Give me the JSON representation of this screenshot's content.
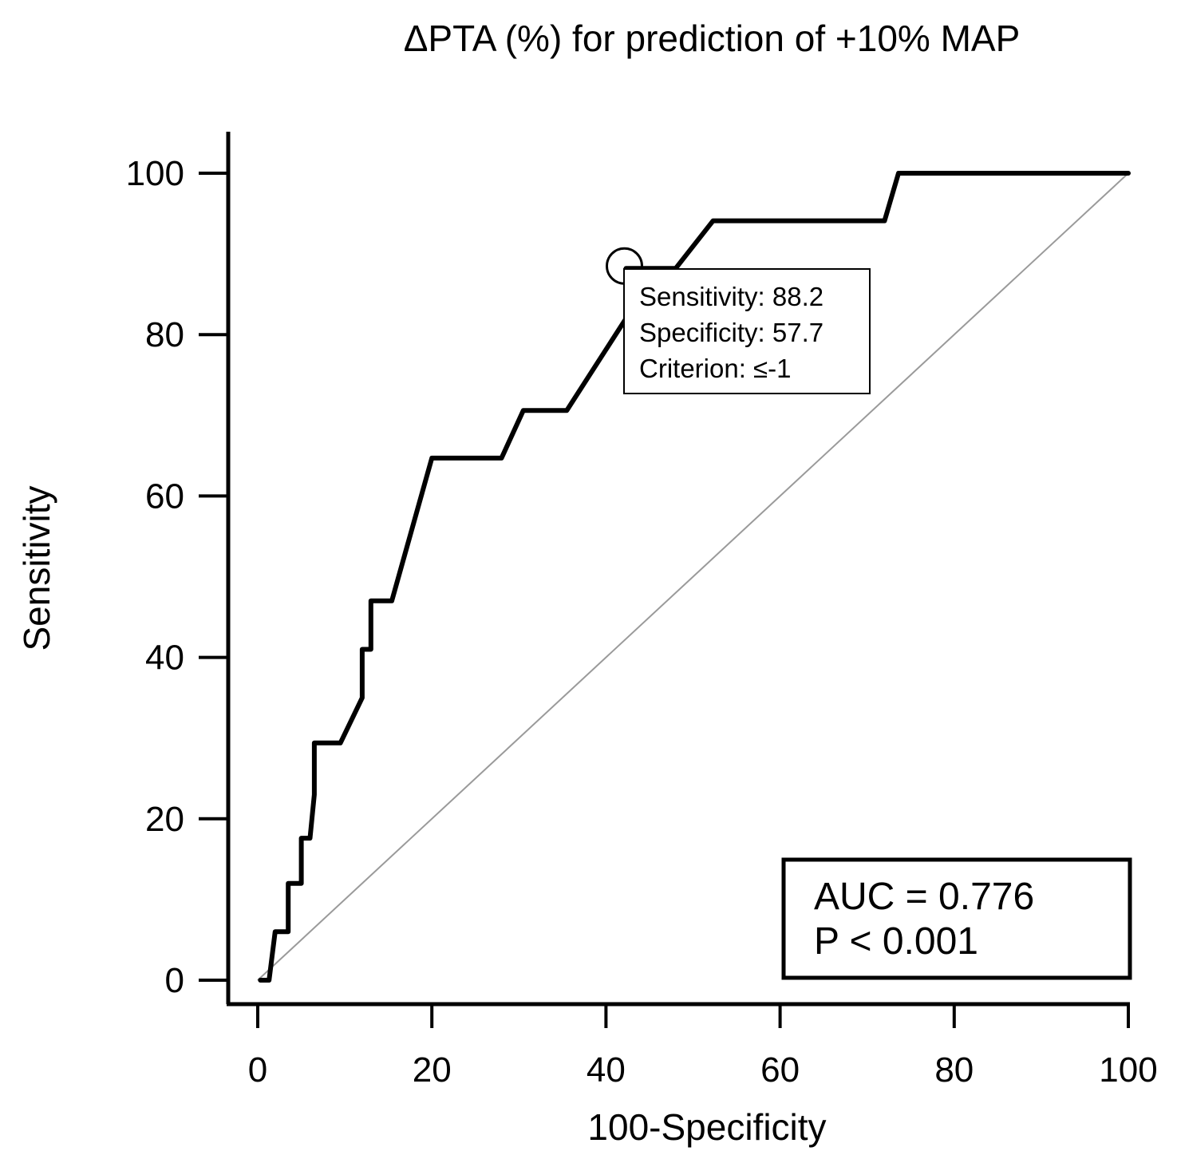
{
  "chart_data": {
    "type": "line",
    "title": "ΔPTA (%) for prediction of +10% MAP",
    "xlabel": "100-Specificity",
    "ylabel": "Sensitivity",
    "xlim": [
      0,
      100
    ],
    "ylim": [
      0,
      100
    ],
    "xticks": [
      0,
      20,
      40,
      60,
      80,
      100
    ],
    "yticks": [
      0,
      20,
      40,
      60,
      80,
      100
    ],
    "grid": false,
    "series": [
      {
        "values": [
          [
            0.3,
            0
          ],
          [
            1.3,
            0
          ],
          [
            2,
            6
          ],
          [
            3.5,
            6
          ],
          [
            3.5,
            12
          ],
          [
            5,
            12
          ],
          [
            5,
            17.6
          ],
          [
            6,
            17.6
          ],
          [
            6.5,
            23
          ],
          [
            6.5,
            29.4
          ],
          [
            9.5,
            29.4
          ],
          [
            12,
            35
          ],
          [
            12,
            41
          ],
          [
            13,
            41
          ],
          [
            13,
            47
          ],
          [
            15.4,
            47
          ],
          [
            20,
            64.7
          ],
          [
            28,
            64.7
          ],
          [
            30.5,
            70.6
          ],
          [
            35.5,
            70.6
          ],
          [
            42.3,
            82
          ],
          [
            42.3,
            88.2
          ],
          [
            48,
            88.2
          ],
          [
            52.3,
            94.1
          ],
          [
            72,
            94.1
          ],
          [
            73.6,
            100
          ],
          [
            100,
            100
          ]
        ]
      },
      {
        "values": [
          [
            0,
            0
          ],
          [
            100,
            100
          ]
        ]
      }
    ],
    "annotations": {
      "criterion_point": {
        "x": 42.3,
        "y": 88.2
      },
      "info_lines": [
        "Sensitivity: 88.2",
        "Specificity: 57.7",
        "Criterion: ≤-1"
      ],
      "stats_lines": [
        "AUC = 0.776",
        "P < 0.001"
      ]
    },
    "colors": {
      "roc": "#000000",
      "reference": "#9a9a9a"
    }
  }
}
